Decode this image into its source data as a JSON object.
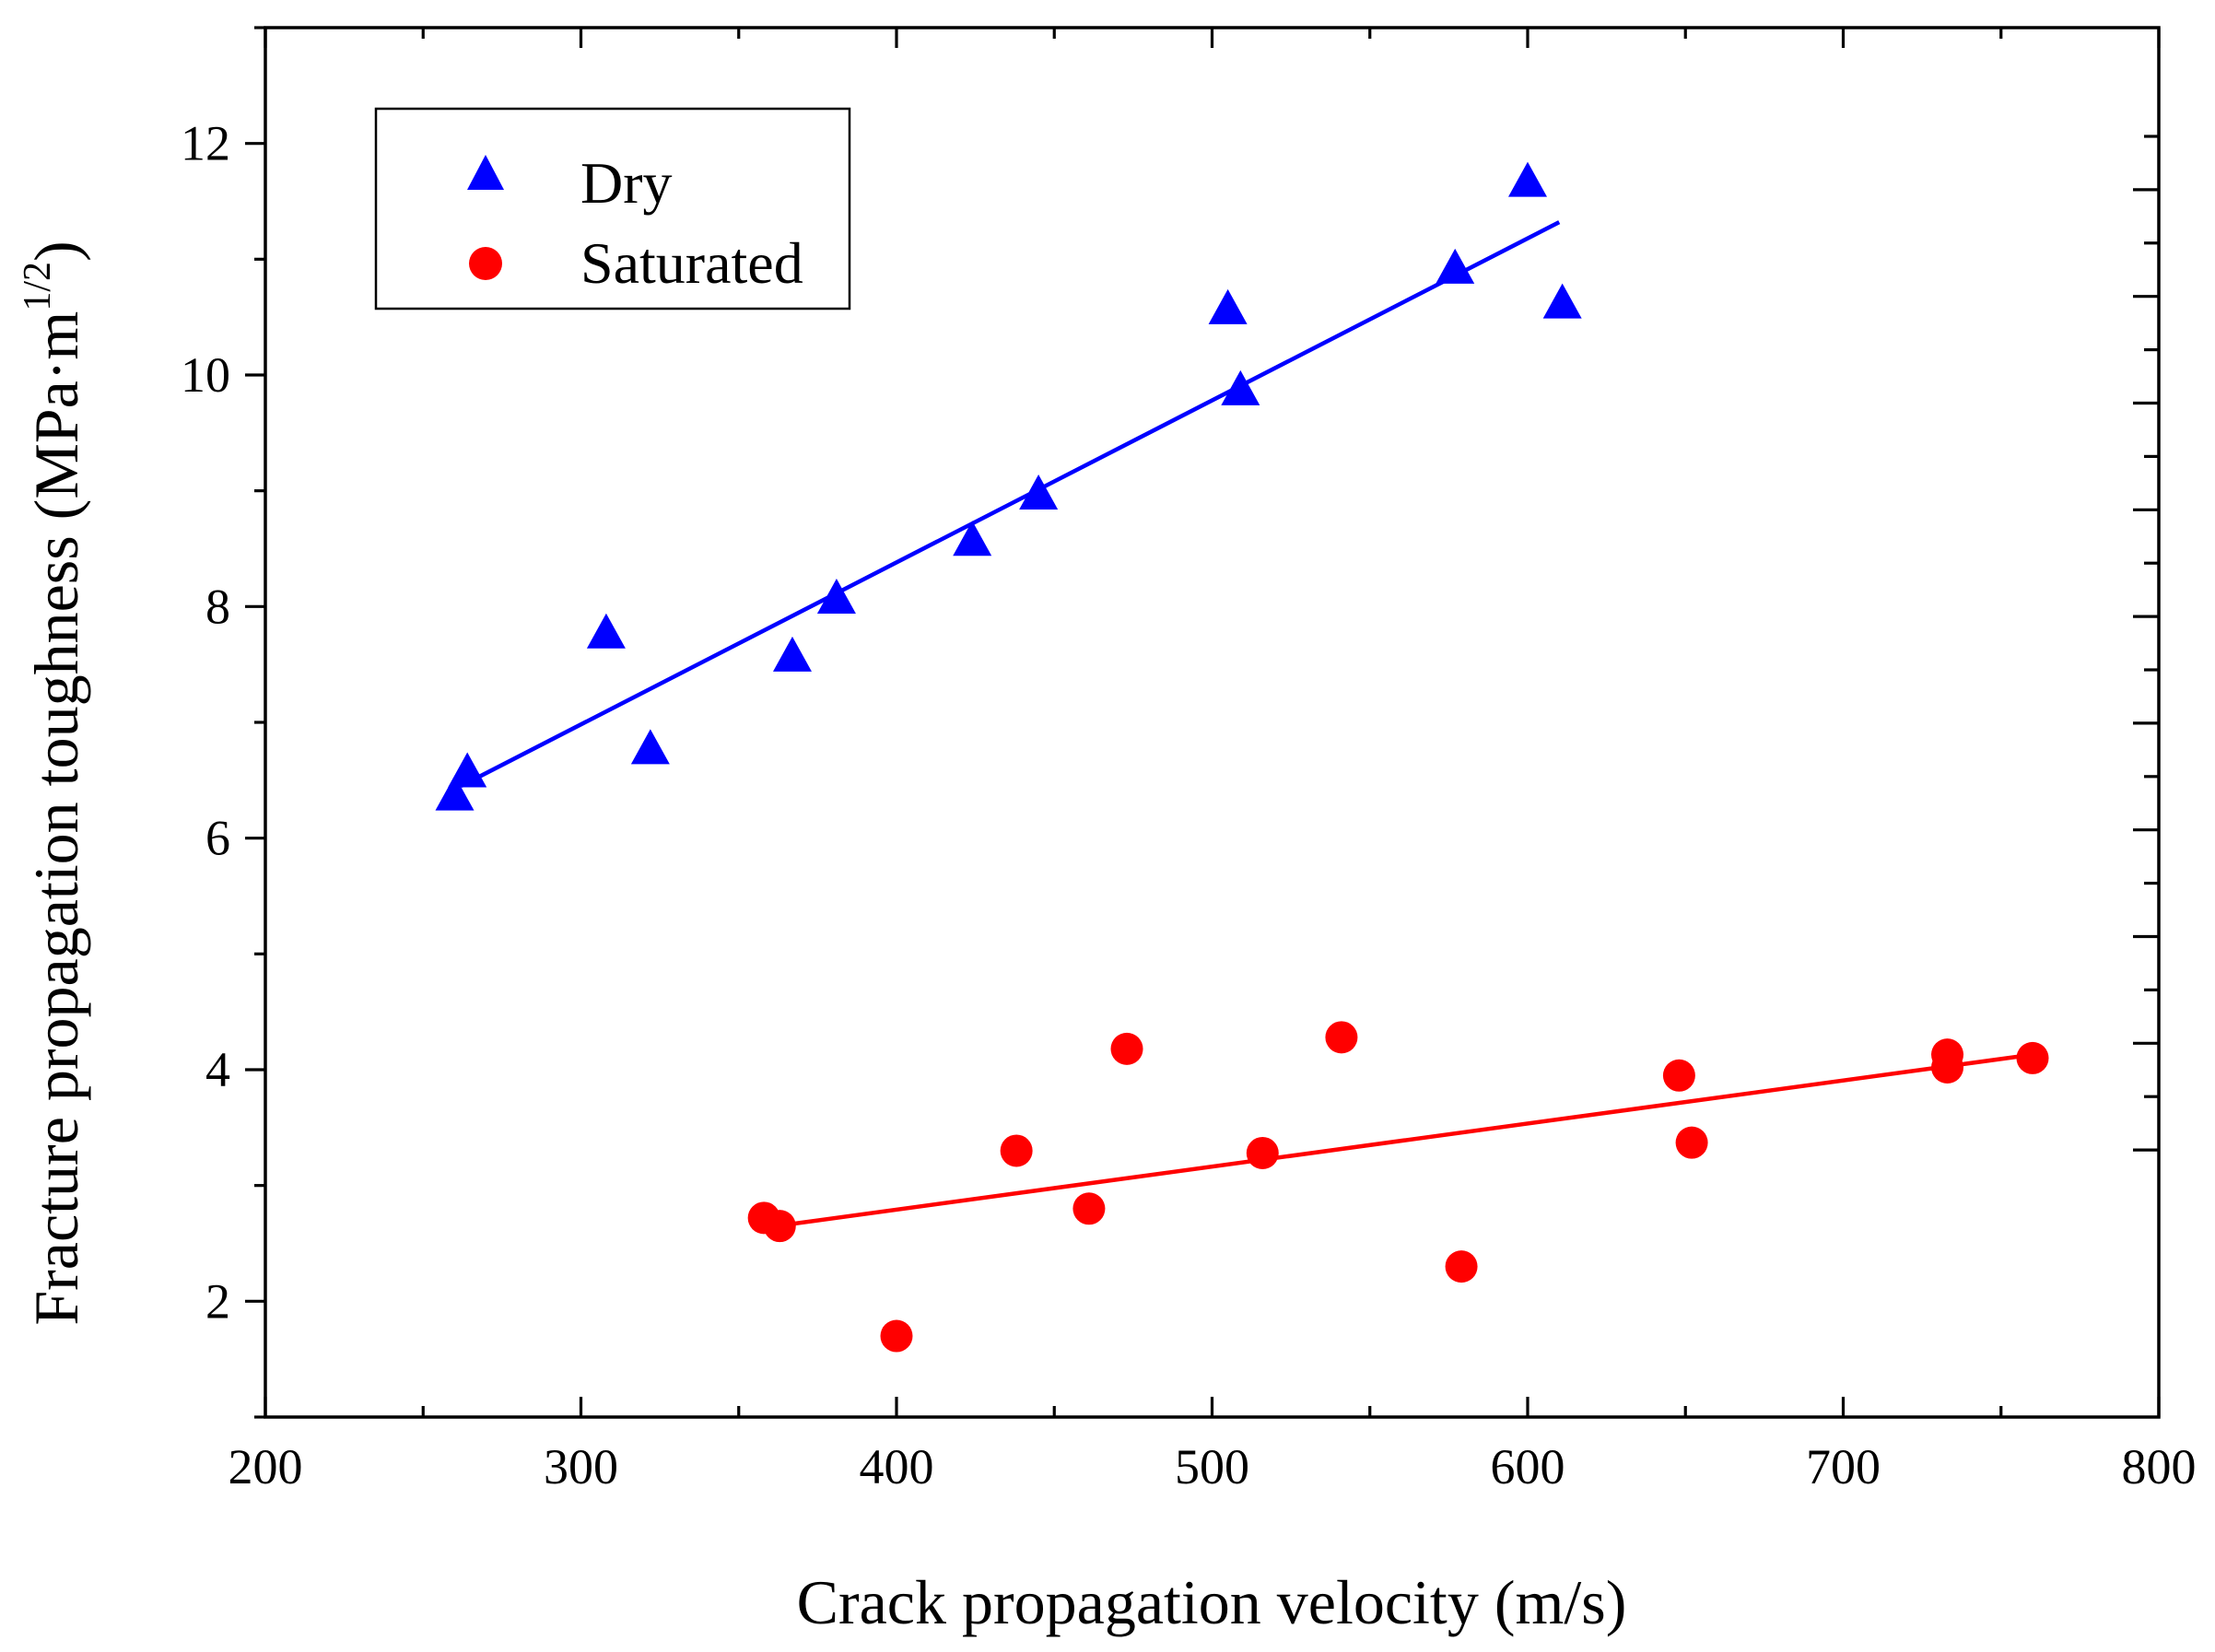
{
  "chart_data": {
    "type": "scatter",
    "title": "",
    "xlabel": "Crack propagation velocity (m/s)",
    "ylabel_main": "Fracture propagation toughness (MPa·m",
    "ylabel_superscript": "1/2",
    "ylabel_close": ")",
    "xlim": [
      200,
      800
    ],
    "ylim": [
      1,
      13
    ],
    "xticks": [
      200,
      300,
      400,
      500,
      600,
      700,
      800
    ],
    "yticks": [
      2,
      4,
      6,
      8,
      10,
      12
    ],
    "grid": false,
    "legend_position": "top-left",
    "series": [
      {
        "name": "Dry",
        "marker": "triangle",
        "color": "#0000ff",
        "points": [
          [
            260,
            6.35
          ],
          [
            264,
            6.55
          ],
          [
            308,
            7.75
          ],
          [
            322,
            6.75
          ],
          [
            367,
            7.55
          ],
          [
            381,
            8.05
          ],
          [
            424,
            8.55
          ],
          [
            445,
            8.95
          ],
          [
            505,
            10.55
          ],
          [
            509,
            9.85
          ],
          [
            577,
            10.9
          ],
          [
            600,
            11.65
          ],
          [
            611,
            10.6
          ]
        ],
        "fit": {
          "x": [
            262,
            610
          ],
          "y": [
            6.45,
            11.32
          ]
        }
      },
      {
        "name": "Saturated",
        "marker": "circle",
        "color": "#ff0000",
        "points": [
          [
            358,
            2.72
          ],
          [
            363,
            2.65
          ],
          [
            400,
            1.7
          ],
          [
            438,
            3.3
          ],
          [
            461,
            2.8
          ],
          [
            473,
            4.18
          ],
          [
            516,
            3.28
          ],
          [
            541,
            4.28
          ],
          [
            579,
            2.3
          ],
          [
            648,
            3.95
          ],
          [
            652,
            3.37
          ],
          [
            733,
            4.02
          ],
          [
            733,
            4.13
          ],
          [
            760,
            4.1
          ]
        ],
        "fit": {
          "x": [
            362,
            760
          ],
          "y": [
            2.65,
            4.13
          ]
        }
      }
    ]
  }
}
